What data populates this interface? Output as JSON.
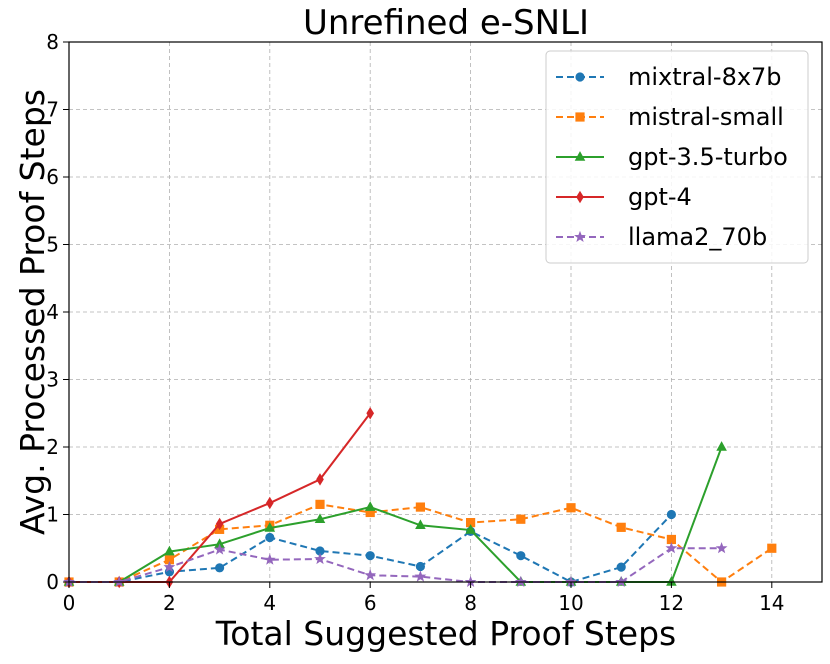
{
  "chart_data": {
    "type": "line",
    "title": "Unrefined e-SNLI",
    "xlabel": "Total Suggested Proof Steps",
    "ylabel": "Avg. Processed Proof Steps",
    "xlim": [
      0,
      15
    ],
    "ylim": [
      0,
      8
    ],
    "xticks": [
      0,
      2,
      4,
      6,
      8,
      10,
      12,
      14
    ],
    "yticks": [
      0,
      1,
      2,
      3,
      4,
      5,
      6,
      7,
      8
    ],
    "grid": true,
    "legend_position": "top-right",
    "series": [
      {
        "name": "mixtral-8x7b",
        "color": "#1f77b4",
        "marker": "circle",
        "linestyle": "dashed",
        "x": [
          0,
          1,
          2,
          3,
          4,
          5,
          6,
          7,
          8,
          9,
          10,
          11,
          12
        ],
        "y": [
          0,
          0,
          0.15,
          0.21,
          0.66,
          0.46,
          0.39,
          0.23,
          0.75,
          0.39,
          0,
          0.22,
          1.0
        ]
      },
      {
        "name": "mistral-small",
        "color": "#ff7f0e",
        "marker": "square",
        "linestyle": "dashed",
        "x": [
          0,
          1,
          2,
          3,
          4,
          5,
          6,
          7,
          8,
          9,
          10,
          11,
          12,
          13,
          14
        ],
        "y": [
          0,
          0,
          0.33,
          0.78,
          0.84,
          1.15,
          1.03,
          1.11,
          0.88,
          0.93,
          1.1,
          0.81,
          0.63,
          0,
          0.5
        ]
      },
      {
        "name": "gpt-3.5-turbo",
        "color": "#2ca02c",
        "marker": "triangle",
        "linestyle": "solid",
        "x": [
          0,
          1,
          2,
          3,
          4,
          5,
          6,
          7,
          8,
          9,
          10,
          11,
          12,
          13
        ],
        "y": [
          0,
          0,
          0.45,
          0.56,
          0.8,
          0.93,
          1.11,
          0.84,
          0.77,
          0,
          0,
          0,
          0,
          2.0
        ]
      },
      {
        "name": "gpt-4",
        "color": "#d62728",
        "marker": "diamond",
        "linestyle": "solid",
        "x": [
          0,
          1,
          2,
          3,
          4,
          5,
          6
        ],
        "y": [
          0,
          0,
          0,
          0.86,
          1.17,
          1.52,
          2.5
        ]
      },
      {
        "name": "llama2_70b",
        "color": "#9467bd",
        "marker": "star",
        "linestyle": "dashed",
        "x": [
          0,
          1,
          2,
          3,
          4,
          5,
          6,
          7,
          8,
          9,
          10,
          11,
          12,
          13
        ],
        "y": [
          0,
          0,
          0.22,
          0.48,
          0.33,
          0.34,
          0.1,
          0.08,
          0,
          0,
          0,
          0,
          0.5,
          0.5
        ]
      }
    ]
  }
}
